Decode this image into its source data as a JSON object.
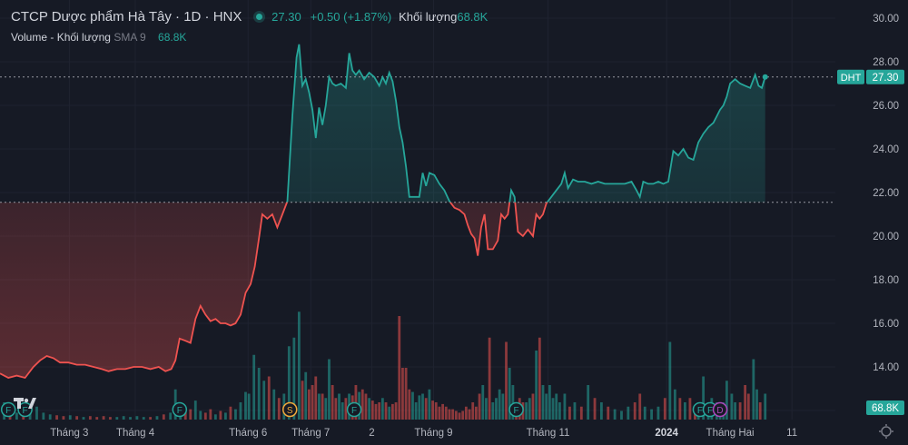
{
  "header": {
    "title": "CTCP Dược phẩm Hà Tây · 1D · HNX",
    "price": "27.30",
    "change": "+0.50 (+1.87%)",
    "volume_label": "Khối lượng",
    "volume_value": "68.8K"
  },
  "volume_legend": {
    "label": "Volume - Khối lượng",
    "ma_label": "SMA 9",
    "value": "68.8K"
  },
  "colors": {
    "background": "#161a25",
    "up": "#26a69a",
    "down": "#ef5350",
    "grid": "#1f2330",
    "axis_text": "#b2b5be"
  },
  "chart_data": {
    "type": "area",
    "symbol": "DHT",
    "last_price": 27.3,
    "last_price_label": "27.30",
    "volume_badge": "68.8K",
    "baseline": 21.55,
    "ylim": [
      12.0,
      30.5
    ],
    "y_ticks": [
      "30.00",
      "28.00",
      "26.00",
      "24.00",
      "22.00",
      "20.00",
      "18.00",
      "16.00",
      "14.00",
      "12.00"
    ],
    "x_ticks": [
      {
        "label": "Tháng 3",
        "x": 0.083
      },
      {
        "label": "Tháng 4",
        "x": 0.162
      },
      {
        "label": "Tháng 6",
        "x": 0.297
      },
      {
        "label": "Tháng 7",
        "x": 0.372
      },
      {
        "label": "2",
        "x": 0.445
      },
      {
        "label": "Tháng 9",
        "x": 0.519
      },
      {
        "label": "Tháng 11",
        "x": 0.656
      },
      {
        "label": "2024",
        "x": 0.798,
        "bold": true
      },
      {
        "label": "Tháng Hai",
        "x": 0.874
      },
      {
        "label": "11",
        "x": 0.948
      }
    ],
    "grid": true,
    "series": [
      {
        "values": [
          [
            0.0,
            13.7
          ],
          [
            0.01,
            13.5
          ],
          [
            0.02,
            13.6
          ],
          [
            0.03,
            13.5
          ],
          [
            0.04,
            14.0
          ],
          [
            0.048,
            14.3
          ],
          [
            0.056,
            14.5
          ],
          [
            0.064,
            14.4
          ],
          [
            0.072,
            14.2
          ],
          [
            0.082,
            14.2
          ],
          [
            0.092,
            14.1
          ],
          [
            0.102,
            14.1
          ],
          [
            0.112,
            14.0
          ],
          [
            0.122,
            13.9
          ],
          [
            0.13,
            13.8
          ],
          [
            0.14,
            13.9
          ],
          [
            0.15,
            13.9
          ],
          [
            0.16,
            14.0
          ],
          [
            0.17,
            14.0
          ],
          [
            0.18,
            13.9
          ],
          [
            0.19,
            14.0
          ],
          [
            0.198,
            13.8
          ],
          [
            0.205,
            13.9
          ],
          [
            0.21,
            14.3
          ],
          [
            0.215,
            15.3
          ],
          [
            0.222,
            15.2
          ],
          [
            0.228,
            15.1
          ],
          [
            0.234,
            16.2
          ],
          [
            0.24,
            16.8
          ],
          [
            0.246,
            16.4
          ],
          [
            0.252,
            16.1
          ],
          [
            0.258,
            16.2
          ],
          [
            0.264,
            16.0
          ],
          [
            0.27,
            16.0
          ],
          [
            0.276,
            15.9
          ],
          [
            0.282,
            16.0
          ],
          [
            0.288,
            16.4
          ],
          [
            0.294,
            17.4
          ],
          [
            0.3,
            17.8
          ],
          [
            0.305,
            18.6
          ],
          [
            0.31,
            19.9
          ],
          [
            0.314,
            21.0
          ],
          [
            0.32,
            20.8
          ],
          [
            0.326,
            21.0
          ],
          [
            0.332,
            20.4
          ],
          [
            0.338,
            21.0
          ],
          [
            0.344,
            21.6
          ],
          [
            0.35,
            25.5
          ],
          [
            0.355,
            28.2
          ],
          [
            0.358,
            28.8
          ],
          [
            0.362,
            26.9
          ],
          [
            0.366,
            27.2
          ],
          [
            0.37,
            26.6
          ],
          [
            0.374,
            25.8
          ],
          [
            0.378,
            24.5
          ],
          [
            0.382,
            25.9
          ],
          [
            0.386,
            25.1
          ],
          [
            0.39,
            26.0
          ],
          [
            0.394,
            27.3
          ],
          [
            0.398,
            27.0
          ],
          [
            0.402,
            26.9
          ],
          [
            0.408,
            27.0
          ],
          [
            0.414,
            26.8
          ],
          [
            0.418,
            28.4
          ],
          [
            0.422,
            27.6
          ],
          [
            0.426,
            27.4
          ],
          [
            0.43,
            27.6
          ],
          [
            0.436,
            27.2
          ],
          [
            0.442,
            27.5
          ],
          [
            0.448,
            27.3
          ],
          [
            0.454,
            26.9
          ],
          [
            0.458,
            27.3
          ],
          [
            0.462,
            27.0
          ],
          [
            0.466,
            27.5
          ],
          [
            0.47,
            27.1
          ],
          [
            0.474,
            26.2
          ],
          [
            0.478,
            25.0
          ],
          [
            0.482,
            24.3
          ],
          [
            0.486,
            23.2
          ],
          [
            0.49,
            21.8
          ],
          [
            0.496,
            21.8
          ],
          [
            0.502,
            21.8
          ],
          [
            0.506,
            22.9
          ],
          [
            0.51,
            22.3
          ],
          [
            0.514,
            22.9
          ],
          [
            0.52,
            22.8
          ],
          [
            0.526,
            22.4
          ],
          [
            0.532,
            22.1
          ],
          [
            0.538,
            21.6
          ],
          [
            0.544,
            21.3
          ],
          [
            0.55,
            21.2
          ],
          [
            0.556,
            21.0
          ],
          [
            0.56,
            20.5
          ],
          [
            0.564,
            20.1
          ],
          [
            0.568,
            19.9
          ],
          [
            0.572,
            19.1
          ],
          [
            0.576,
            20.4
          ],
          [
            0.58,
            21.0
          ],
          [
            0.584,
            19.4
          ],
          [
            0.59,
            19.4
          ],
          [
            0.596,
            19.8
          ],
          [
            0.6,
            21.0
          ],
          [
            0.604,
            20.8
          ],
          [
            0.608,
            21.0
          ],
          [
            0.612,
            22.1
          ],
          [
            0.616,
            21.8
          ],
          [
            0.62,
            20.2
          ],
          [
            0.626,
            20.0
          ],
          [
            0.632,
            20.3
          ],
          [
            0.638,
            20.0
          ],
          [
            0.642,
            21.0
          ],
          [
            0.646,
            20.8
          ],
          [
            0.65,
            21.0
          ],
          [
            0.654,
            21.5
          ],
          [
            0.66,
            21.8
          ],
          [
            0.666,
            22.1
          ],
          [
            0.672,
            22.4
          ],
          [
            0.676,
            22.9
          ],
          [
            0.68,
            22.2
          ],
          [
            0.686,
            22.6
          ],
          [
            0.692,
            22.5
          ],
          [
            0.7,
            22.5
          ],
          [
            0.708,
            22.4
          ],
          [
            0.716,
            22.5
          ],
          [
            0.724,
            22.4
          ],
          [
            0.732,
            22.4
          ],
          [
            0.74,
            22.4
          ],
          [
            0.748,
            22.4
          ],
          [
            0.756,
            22.5
          ],
          [
            0.762,
            22.1
          ],
          [
            0.766,
            21.8
          ],
          [
            0.77,
            22.5
          ],
          [
            0.776,
            22.4
          ],
          [
            0.782,
            22.4
          ],
          [
            0.788,
            22.5
          ],
          [
            0.794,
            22.4
          ],
          [
            0.8,
            22.5
          ],
          [
            0.806,
            23.9
          ],
          [
            0.812,
            23.7
          ],
          [
            0.818,
            24.0
          ],
          [
            0.824,
            23.6
          ],
          [
            0.83,
            23.5
          ],
          [
            0.836,
            24.3
          ],
          [
            0.842,
            24.7
          ],
          [
            0.848,
            25.0
          ],
          [
            0.854,
            25.2
          ],
          [
            0.858,
            25.5
          ],
          [
            0.862,
            25.8
          ],
          [
            0.866,
            26.0
          ],
          [
            0.87,
            26.4
          ],
          [
            0.874,
            27.0
          ],
          [
            0.88,
            27.2
          ],
          [
            0.886,
            27.0
          ],
          [
            0.892,
            26.9
          ],
          [
            0.898,
            26.8
          ],
          [
            0.904,
            27.4
          ],
          [
            0.908,
            26.9
          ],
          [
            0.912,
            26.8
          ],
          [
            0.916,
            27.3
          ]
        ]
      }
    ],
    "volume": [
      [
        0.005,
        20
      ],
      [
        0.012,
        10
      ],
      [
        0.02,
        8
      ],
      [
        0.028,
        12
      ],
      [
        0.036,
        8
      ],
      [
        0.044,
        15
      ],
      [
        0.052,
        8
      ],
      [
        0.06,
        6
      ],
      [
        0.068,
        5
      ],
      [
        0.076,
        4
      ],
      [
        0.084,
        5
      ],
      [
        0.092,
        4
      ],
      [
        0.1,
        3
      ],
      [
        0.108,
        4
      ],
      [
        0.116,
        3
      ],
      [
        0.124,
        4
      ],
      [
        0.132,
        3
      ],
      [
        0.14,
        3
      ],
      [
        0.148,
        4
      ],
      [
        0.156,
        3
      ],
      [
        0.164,
        4
      ],
      [
        0.172,
        3
      ],
      [
        0.18,
        3
      ],
      [
        0.188,
        4
      ],
      [
        0.196,
        6
      ],
      [
        0.204,
        8
      ],
      [
        0.21,
        35
      ],
      [
        0.216,
        18
      ],
      [
        0.222,
        10
      ],
      [
        0.228,
        12
      ],
      [
        0.234,
        22
      ],
      [
        0.24,
        10
      ],
      [
        0.246,
        8
      ],
      [
        0.252,
        12
      ],
      [
        0.258,
        6
      ],
      [
        0.264,
        10
      ],
      [
        0.27,
        8
      ],
      [
        0.276,
        15
      ],
      [
        0.282,
        12
      ],
      [
        0.288,
        20
      ],
      [
        0.294,
        32
      ],
      [
        0.298,
        30
      ],
      [
        0.304,
        75
      ],
      [
        0.31,
        60
      ],
      [
        0.316,
        45
      ],
      [
        0.322,
        50
      ],
      [
        0.328,
        35
      ],
      [
        0.334,
        25
      ],
      [
        0.34,
        30
      ],
      [
        0.346,
        85
      ],
      [
        0.352,
        95
      ],
      [
        0.358,
        125
      ],
      [
        0.362,
        45
      ],
      [
        0.366,
        55
      ],
      [
        0.37,
        35
      ],
      [
        0.374,
        40
      ],
      [
        0.378,
        50
      ],
      [
        0.382,
        30
      ],
      [
        0.386,
        30
      ],
      [
        0.39,
        25
      ],
      [
        0.394,
        70
      ],
      [
        0.398,
        40
      ],
      [
        0.402,
        25
      ],
      [
        0.406,
        30
      ],
      [
        0.41,
        20
      ],
      [
        0.414,
        25
      ],
      [
        0.418,
        30
      ],
      [
        0.422,
        28
      ],
      [
        0.426,
        40
      ],
      [
        0.43,
        32
      ],
      [
        0.434,
        35
      ],
      [
        0.438,
        30
      ],
      [
        0.442,
        25
      ],
      [
        0.446,
        22
      ],
      [
        0.45,
        18
      ],
      [
        0.454,
        20
      ],
      [
        0.458,
        25
      ],
      [
        0.462,
        20
      ],
      [
        0.466,
        15
      ],
      [
        0.47,
        18
      ],
      [
        0.474,
        20
      ],
      [
        0.478,
        120
      ],
      [
        0.482,
        60
      ],
      [
        0.486,
        60
      ],
      [
        0.49,
        35
      ],
      [
        0.494,
        32
      ],
      [
        0.498,
        20
      ],
      [
        0.502,
        28
      ],
      [
        0.506,
        30
      ],
      [
        0.51,
        25
      ],
      [
        0.514,
        35
      ],
      [
        0.518,
        22
      ],
      [
        0.522,
        20
      ],
      [
        0.526,
        15
      ],
      [
        0.53,
        18
      ],
      [
        0.534,
        15
      ],
      [
        0.538,
        12
      ],
      [
        0.542,
        12
      ],
      [
        0.546,
        10
      ],
      [
        0.55,
        8
      ],
      [
        0.554,
        10
      ],
      [
        0.558,
        15
      ],
      [
        0.562,
        12
      ],
      [
        0.566,
        20
      ],
      [
        0.57,
        15
      ],
      [
        0.574,
        30
      ],
      [
        0.578,
        40
      ],
      [
        0.582,
        25
      ],
      [
        0.586,
        95
      ],
      [
        0.59,
        20
      ],
      [
        0.594,
        25
      ],
      [
        0.598,
        35
      ],
      [
        0.602,
        30
      ],
      [
        0.606,
        90
      ],
      [
        0.61,
        60
      ],
      [
        0.614,
        40
      ],
      [
        0.618,
        20
      ],
      [
        0.622,
        25
      ],
      [
        0.626,
        20
      ],
      [
        0.63,
        20
      ],
      [
        0.634,
        25
      ],
      [
        0.638,
        30
      ],
      [
        0.642,
        80
      ],
      [
        0.646,
        95
      ],
      [
        0.65,
        40
      ],
      [
        0.654,
        30
      ],
      [
        0.658,
        40
      ],
      [
        0.662,
        25
      ],
      [
        0.666,
        30
      ],
      [
        0.67,
        20
      ],
      [
        0.676,
        30
      ],
      [
        0.682,
        15
      ],
      [
        0.688,
        20
      ],
      [
        0.696,
        15
      ],
      [
        0.704,
        40
      ],
      [
        0.712,
        25
      ],
      [
        0.72,
        20
      ],
      [
        0.728,
        15
      ],
      [
        0.736,
        12
      ],
      [
        0.744,
        10
      ],
      [
        0.752,
        15
      ],
      [
        0.76,
        20
      ],
      [
        0.766,
        30
      ],
      [
        0.772,
        15
      ],
      [
        0.78,
        12
      ],
      [
        0.788,
        15
      ],
      [
        0.796,
        25
      ],
      [
        0.802,
        90
      ],
      [
        0.808,
        35
      ],
      [
        0.814,
        25
      ],
      [
        0.82,
        20
      ],
      [
        0.826,
        25
      ],
      [
        0.832,
        15
      ],
      [
        0.836,
        20
      ],
      [
        0.842,
        50
      ],
      [
        0.848,
        20
      ],
      [
        0.852,
        25
      ],
      [
        0.858,
        20
      ],
      [
        0.862,
        15
      ],
      [
        0.866,
        20
      ],
      [
        0.87,
        45
      ],
      [
        0.876,
        30
      ],
      [
        0.88,
        20
      ],
      [
        0.886,
        20
      ],
      [
        0.892,
        40
      ],
      [
        0.896,
        30
      ],
      [
        0.902,
        70
      ],
      [
        0.906,
        35
      ],
      [
        0.91,
        20
      ],
      [
        0.916,
        30
      ]
    ],
    "markers": [
      {
        "label": "F",
        "x": 0.01,
        "color": "#26a69a"
      },
      {
        "label": "F",
        "x": 0.03,
        "color": "#26a69a"
      },
      {
        "label": "F",
        "x": 0.215,
        "color": "#26a69a"
      },
      {
        "label": "S",
        "x": 0.347,
        "color": "#f0a93b"
      },
      {
        "label": "F",
        "x": 0.424,
        "color": "#26a69a"
      },
      {
        "label": "F",
        "x": 0.618,
        "color": "#26a69a"
      },
      {
        "label": "F",
        "x": 0.838,
        "color": "#26a69a"
      },
      {
        "label": "F",
        "x": 0.85,
        "color": "#26a69a"
      },
      {
        "label": "D",
        "x": 0.862,
        "color": "#ab47bc"
      }
    ]
  }
}
